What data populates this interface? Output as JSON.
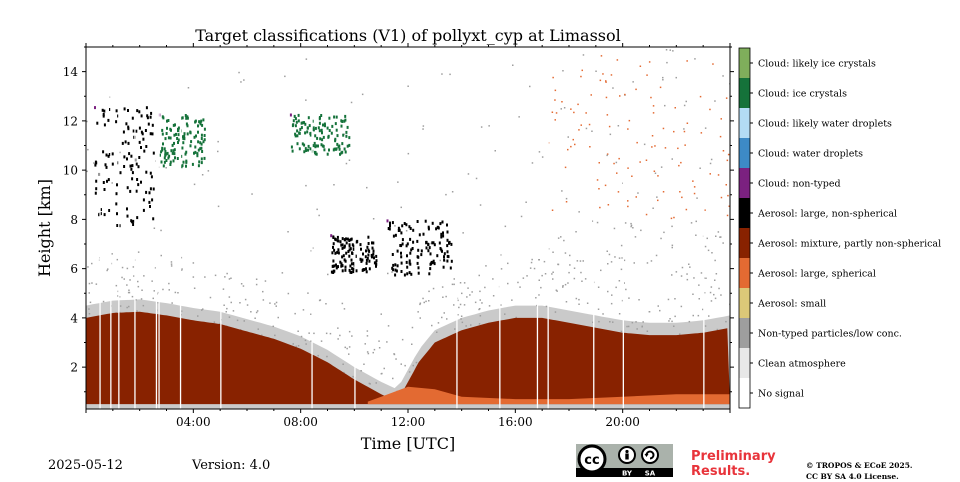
{
  "chart_data": {
    "type": "heatmap",
    "title": "Target classifications (V1) of pollyxt_cyp at Limassol",
    "xlabel": "Time [UTC]",
    "ylabel": "Height [km]",
    "xlim_hours": [
      0,
      24
    ],
    "ylim_km": [
      0.3,
      15
    ],
    "x_ticks": [
      {
        "hour": 4,
        "label": "04:00"
      },
      {
        "hour": 8,
        "label": "08:00"
      },
      {
        "hour": 12,
        "label": "12:00"
      },
      {
        "hour": 16,
        "label": "16:00"
      },
      {
        "hour": 20,
        "label": "20:00"
      }
    ],
    "y_ticks": [
      {
        "km": 2,
        "label": "2"
      },
      {
        "km": 4,
        "label": "4"
      },
      {
        "km": 6,
        "label": "6"
      },
      {
        "km": 8,
        "label": "8"
      },
      {
        "km": 10,
        "label": "10"
      },
      {
        "km": 12,
        "label": "12"
      },
      {
        "km": 14,
        "label": "14"
      }
    ],
    "classes": [
      {
        "label": "Cloud: likely ice crystals",
        "color": "#7fae5b"
      },
      {
        "label": "Cloud: ice crystals",
        "color": "#15723a"
      },
      {
        "label": "Cloud: likely water droplets",
        "color": "#b3dcf5"
      },
      {
        "label": "Cloud: water droplets",
        "color": "#3d8ac6"
      },
      {
        "label": "Cloud: non-typed",
        "color": "#7b2180"
      },
      {
        "label": "Aerosol: large, non-spherical",
        "color": "#000000"
      },
      {
        "label": "Aerosol: mixture, partly non-spherical",
        "color": "#882200"
      },
      {
        "label": "Aerosol: large, spherical",
        "color": "#e36a32"
      },
      {
        "label": "Aerosol: small",
        "color": "#dcc878"
      },
      {
        "label": "Non-typed particles/low conc.",
        "color": "#9e9e9e"
      },
      {
        "label": "Clean atmosphere",
        "color": "#e8e8e8"
      },
      {
        "label": "No signal",
        "color": "#ffffff"
      }
    ],
    "aerosol_layer_top_km": [
      [
        0,
        4.0
      ],
      [
        1,
        4.2
      ],
      [
        2,
        4.25
      ],
      [
        3,
        4.1
      ],
      [
        4,
        3.9
      ],
      [
        5,
        3.75
      ],
      [
        6,
        3.45
      ],
      [
        7,
        3.15
      ],
      [
        8,
        2.75
      ],
      [
        9,
        2.2
      ],
      [
        10,
        1.5
      ],
      [
        11,
        0.9
      ],
      [
        11.6,
        0.6
      ],
      [
        12.4,
        2.2
      ],
      [
        13,
        3.0
      ],
      [
        14,
        3.5
      ],
      [
        15,
        3.8
      ],
      [
        16,
        4.0
      ],
      [
        17,
        4.0
      ],
      [
        18,
        3.8
      ],
      [
        19,
        3.6
      ],
      [
        20,
        3.4
      ],
      [
        21,
        3.3
      ],
      [
        22,
        3.3
      ],
      [
        23,
        3.4
      ],
      [
        24,
        3.6
      ]
    ],
    "aerosol_surface_layer_top_km": [
      [
        10.5,
        0.6
      ],
      [
        11,
        0.8
      ],
      [
        12,
        1.2
      ],
      [
        13,
        1.1
      ],
      [
        14,
        0.8
      ],
      [
        16,
        0.7
      ],
      [
        18,
        0.7
      ],
      [
        20,
        0.8
      ],
      [
        22,
        0.9
      ],
      [
        24,
        0.9
      ]
    ],
    "cloud_features": [
      {
        "from_h": 0.3,
        "to_h": 2.5,
        "base_km": 7.8,
        "top_km": 12.6,
        "class": "Aerosol: large, non-spherical"
      },
      {
        "from_h": 2.7,
        "to_h": 4.4,
        "base_km": 10.2,
        "top_km": 12.3,
        "class": "Cloud: ice crystals"
      },
      {
        "from_h": 7.6,
        "to_h": 9.8,
        "base_km": 10.7,
        "top_km": 12.3,
        "class": "Cloud: ice crystals"
      },
      {
        "from_h": 9.1,
        "to_h": 10.8,
        "base_km": 5.9,
        "top_km": 7.4,
        "class": "Aerosol: large, non-spherical"
      },
      {
        "from_h": 11.2,
        "to_h": 13.6,
        "base_km": 5.8,
        "top_km": 8.0,
        "class": "Aerosol: large, non-spherical"
      }
    ],
    "data_gaps_hours": [
      0.5,
      0.9,
      1.2,
      1.8,
      2.6,
      2.7,
      3.5,
      5.0,
      8.4,
      10.0,
      13.8,
      15.4,
      16.8,
      17.2,
      18.9,
      20.0,
      23.0
    ]
  },
  "footer": {
    "date": "2025-05-12",
    "version": "Version: 4.0",
    "preliminary_line1": "Preliminary",
    "preliminary_line2": "Results.",
    "copyright_line1": "© TROPOS & ECoE 2025.",
    "copyright_line2": "CC BY SA 4.0 License.",
    "badge_text": [
      "cc",
      "BY",
      "SA"
    ]
  }
}
